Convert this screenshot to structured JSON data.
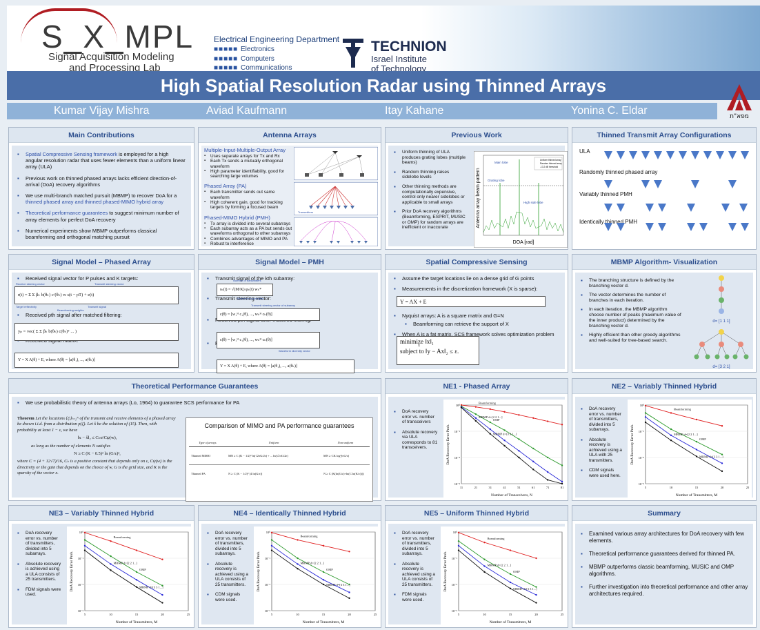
{
  "header": {
    "logo_main": "S_X_MPL",
    "logo_sub1": "Signal Acquisition Modeling",
    "logo_sub2": "and Processing Lab",
    "dept": "Electrical Engineering Department",
    "dept_lines": [
      "Electronics",
      "Computers",
      "Communications"
    ],
    "technion": "TECHNION",
    "technion_sub1": "Israel Institute",
    "technion_sub2": "of Technology",
    "rafael": "מפא\"ת"
  },
  "title": "High Spatial Resolution Radar using Thinned Arrays",
  "authors": [
    "Kumar Vijay Mishra",
    "Aviad Kaufmann",
    "Itay Kahane",
    "Yonina C. Eldar"
  ],
  "main_contributions": {
    "title": "Main Contributions",
    "items": [
      {
        "lead": "Spatial Compressive Sensing framework",
        "rest": " is employed for a high angular resolution radar that uses fewer elements than a uniform linear array (ULA)"
      },
      {
        "lead": "",
        "rest": "Previous work on thinned phased arrays lacks efficient direction-of-arrival (DoA) recovery algorithms"
      },
      {
        "lead": "",
        "rest": "We use multi-branch matched pursuit (MBMP) to recover DoA for a ",
        "tail": "thinned phased array and thinned phased-MIMO hybrid array"
      },
      {
        "lead": "Theoretical performance guarantees",
        "rest": " to suggest minimum number of array elements for perfect DoA recovery"
      },
      {
        "lead": "",
        "rest": "Numerical experiments show MBMP outperforms classical beamforming and orthogonal matching pursuit"
      }
    ]
  },
  "antenna_arrays": {
    "title": "Antenna Arrays",
    "mimo_title": "Multiple-Input-Multiple-Output Array",
    "mimo_items": [
      "Uses separate arrays for Tx and Rx",
      "Each Tx sends a mutually orthogonal waveform",
      "High parameter identifiability, good for searching large volumes"
    ],
    "pa_title": "Phased Array (PA)",
    "pa_items": [
      "Each transmitter sends out same waveform",
      "High coherent gain, good for tracking targets by forming a focused beam"
    ],
    "pmh_title": "Phased-MIMO Hybrid (PMH)",
    "pmh_items": [
      "Tx array is divided into several subarrays",
      "Each subarray acts as a PA but sends out waveforms orthogonal to other subarrays",
      "Combines advantages of MIMO and PA",
      "Robust to interference"
    ],
    "fig_label": "Transmitters"
  },
  "previous_work": {
    "title": "Previous Work",
    "items": [
      "Uniform thinning of ULA produces grating lobes (multiple beams)",
      "Random thinning raises sidelobe levels",
      "Other thinning methods are computationally expensive, control only nearer sidelobes or applicable to small arrays",
      "Prior DoA recovery algorithms (Beamforming, ESPRIT, MUSIC or OMP) for random arrays are inefficient or inaccurate"
    ],
    "fig_ylabel": "Antenna array beam pattern",
    "fig_xlabel": "DOA [rad]",
    "fig_labels": [
      "Main lobe",
      "Grating lobe",
      "High side lobe"
    ],
    "fig_legend": [
      "Uniform thinned array",
      "Random thinned array",
      "-13.2 dB threshold"
    ]
  },
  "thinned_configs": {
    "title": "Thinned Transmit Array Configurations",
    "rows": [
      "ULA",
      "Randomly thinned phased array",
      "Variably thinned PMH",
      "Identically thinned PMH"
    ]
  },
  "signal_pa": {
    "title": "Signal Model – Phased Array",
    "items": [
      "Received signal vector for P pulses and K targets:",
      "Received pth signal after matched filtering:",
      "Received signal matrix:"
    ],
    "annotations": [
      "Receive steering vector",
      "Transmit steering vector",
      "Target reflectivity",
      "Transmit signal",
      "Beamforming weights"
    ],
    "eq1": "r(t) = Σ Σ βₖ b(θₖ) cᶜ(θₖ) w s(t − pT) + e(t)",
    "eq2": "yₚ = vec( Σ Σ βₖ b(θₖ) c(θₖ)ᵀ ... )",
    "eq3": "Y = X A(θ) + E, where A(θ) = [a(θ₁), ..., a(θₖ)]"
  },
  "signal_pmh": {
    "title": "Signal Model – PMH",
    "items": [
      "Transmit signal of the kth subarray:",
      "Transmit steering vector:",
      "Received pth signal after matched filtering:",
      "Received signal matrix:"
    ],
    "annotations": [
      "Number of transmitters",
      "Beamforming weights",
      "Transmit steering vector of subarray",
      "Waveform diversity vector"
    ],
    "eq1": "sₖ(t) = √(M/K) φₖ(t) wₖ*",
    "eq2": "c(θ) = [w₁ᴴ c₁(θ), ..., wₖᴴ cₖ(θ)]",
    "eq3": "Y = X A(θ) + E, where A(θ) = [a(θ₁), ..., a(θₖ)]"
  },
  "scs": {
    "title": "Spatial Compressive Sensing",
    "items": [
      "Assume the target locations lie on a dense grid of G points",
      "Measurements in the discretization framework (X is sparse):",
      "Nyquist arrays: A is a square matrix and G=N",
      "Beamforming can retrieve the support of X",
      "When A is a fat matrix, SCS framework solves optimization problem"
    ],
    "eq1": "Y = AX + E",
    "opt1": "minimize  ‖x‖₁",
    "opt1_sub": "x",
    "opt2": "subject to  ‖y − Ax‖₂ ≤ ε."
  },
  "mbmp": {
    "title": "MBMP Algorithm- Visualization",
    "items": [
      "The branching structure is defined by the branching vector d.",
      "The vector determines the number of branches in each iteration.",
      "In each iteration, the MBMP algorithm choose number of peaks (maximum value of the inner product) determined by the branching vector d.",
      "Highly efficient than other greedy algorithms and well-suited for tree-based search."
    ],
    "d1": "d= [1 1 1]",
    "d2": "d= [3 2 1]"
  },
  "theory": {
    "title": "Theoretical Performance Guarantees",
    "intro": "We use probabilistic theory of antenna arrays (Lo, 1964) to guarantee SCS performance for PA",
    "theorem_head": "Theorem",
    "theorem_text": "Let the locations {ζₗ}ₗ₌₁ᴺ of the transmit and receive elements of a phased array be drawn i.i.d. from a distribution p(ζ). Let x̂ be the solution of (15). Then, with probability at least 1 − ε, we have",
    "ineq1": "‖x − x̂‖₂ ≤ Cₖσ/Cψ(w),",
    "ineq_text": "as long as the number of elements N satisfies",
    "ineq2": "N ≥ C (K − 0.5)² ln (G/ε)²,",
    "closing": "where C = (4 + 12√7)/16, Cₖ is a positive constant that depends only on ε, Cψ(w) is the directivity or the gain that depends on the choice of w, G is the grid size, and K is the sparsity of the vector x.",
    "table_title": "Comparison of MIMO and PA performance guarantees",
    "table_headers": [
      "Type of arrays",
      "Uniform",
      "Non-uniform"
    ],
    "table_rows": [
      [
        "Thinned MIMO",
        "MN ≥ C (K − 1/2)² ln(√2πG/2ε) + ... ln(√2πG/2ε)",
        "MN ≥ CK log³(πG/ε)"
      ],
      [
        "Thinned PA",
        "N ≥ C (K − 1/2)² [4 ln(G/ε)]",
        "N ≥ C (K(ln(G/ε)+ln(C ln(K/ε))))"
      ]
    ]
  },
  "ne1": {
    "title": "NE1 - Phased Array",
    "items": [
      "DoA recovery error vs. number of transceivers",
      "Absolute recovery via ULA corresponds to 81 transceivers."
    ]
  },
  "ne2": {
    "title": "NE2 – Variably Thinned Hybrid",
    "items": [
      "DoA recovery error vs. number of transmitters, divided into 5 subarrays.",
      "Absolute recovery is achieved using a ULA with 25 transmitters.",
      "CDM signals were used here."
    ]
  },
  "ne3": {
    "title": "NE3 – Variably Thinned Hybrid",
    "items": [
      "DoA recovery error vs. number of transmitters, divided into 5 subarrays.",
      "Absolute recovery is achieved using a ULA consists of 25 transmitters.",
      "FDM signals were used."
    ]
  },
  "ne4": {
    "title": "NE4 – Identically Thinned Hybrid",
    "items": [
      "DoA recovery error vs. number of transmitters, divided into 5 subarrays.",
      "Absolute recovery is achieved using a ULA consists of 25 transmitters.",
      "CDM signals were used."
    ]
  },
  "ne5": {
    "title": "NE5 – Uniform Thinned Hybrid",
    "items": [
      "DoA recovery error vs. number of transmitters, divided into 5 subarrays.",
      "Absolute recovery is achieved using a ULA consists of 25 transmitters.",
      "FDM signals were used."
    ]
  },
  "summary": {
    "title": "Summary",
    "items": [
      "Examined various array architectures for DoA recovery with few elements.",
      "Theoretical performance guarantees derived for thinned PA.",
      "MBMP outperforms classic beamforming, MUSIC and OMP algorithms.",
      "Further investigation into theoretical performance and other array architectures required."
    ]
  },
  "chart_data": [
    {
      "id": "ne1",
      "type": "line",
      "xlabel": "Number of Transceivers, N",
      "ylabel": "DoA Recovery Error Prob.",
      "x": [
        11,
        21,
        31,
        41,
        51,
        61,
        71,
        81
      ],
      "xticks": [
        "11",
        "21",
        "31",
        "41",
        "51",
        "61",
        "71",
        "81"
      ],
      "ylim": [
        0.001,
        1
      ],
      "yscale": "log",
      "series": [
        {
          "name": "Beamforming",
          "color": "#e02020",
          "values": [
            1.0,
            0.85,
            0.7,
            0.55,
            0.42,
            0.32,
            0.24,
            0.18
          ]
        },
        {
          "name": "OMP",
          "color": "#2d9a2d",
          "values": [
            0.9,
            0.45,
            0.22,
            0.11,
            0.05,
            0.022,
            0.01,
            0.005
          ]
        },
        {
          "name": "MBMP d=[2 2 1...]",
          "color": "#2a2ad8",
          "values": [
            0.85,
            0.32,
            0.12,
            0.045,
            0.018,
            0.007,
            0.0028,
            0.0012
          ]
        },
        {
          "name": "MBMP d=[3 3 1...]",
          "color": "#111111",
          "values": [
            0.8,
            0.25,
            0.08,
            0.028,
            0.01,
            0.0035,
            0.0014,
            0.001
          ]
        }
      ]
    },
    {
      "id": "ne2",
      "type": "line",
      "xlabel": "Number of Transmitters, M",
      "ylabel": "DoA Recovery Error Prob.",
      "x": [
        5,
        10,
        15,
        20
      ],
      "xticks": [
        "5",
        "10",
        "15",
        "20",
        "25"
      ],
      "ylim": [
        0.001,
        1
      ],
      "yscale": "log",
      "series": [
        {
          "name": "Beamforming",
          "color": "#e02020",
          "values": [
            0.95,
            0.5,
            0.28,
            0.16
          ]
        },
        {
          "name": "OMP",
          "color": "#2d9a2d",
          "values": [
            0.5,
            0.12,
            0.04,
            0.013
          ]
        },
        {
          "name": "MBMP d=[2 2 1...]",
          "color": "#2a2ad8",
          "values": [
            0.35,
            0.07,
            0.02,
            0.006
          ]
        },
        {
          "name": "MBMP d=[3 3 1...]",
          "color": "#111111",
          "values": [
            0.22,
            0.045,
            0.011,
            0.003
          ]
        }
      ]
    },
    {
      "id": "ne3",
      "type": "line",
      "xlabel": "Number of Transmitters, M",
      "ylabel": "DoA Recovery Error Prob.",
      "x": [
        5,
        10,
        15,
        20
      ],
      "xticks": [
        "5",
        "10",
        "15",
        "20",
        "25"
      ],
      "ylim": [
        0.001,
        1
      ],
      "yscale": "log",
      "series": [
        {
          "name": "Beamforming",
          "color": "#e02020",
          "values": [
            0.95,
            0.45,
            0.2,
            0.09
          ]
        },
        {
          "name": "OMP",
          "color": "#2d9a2d",
          "values": [
            0.5,
            0.12,
            0.03,
            0.009
          ]
        },
        {
          "name": "MBMP d=[2 2 1...]",
          "color": "#2a2ad8",
          "values": [
            0.3,
            0.06,
            0.015,
            0.004
          ]
        },
        {
          "name": "MBMP d=[3 3 1...]",
          "color": "#111111",
          "values": [
            0.2,
            0.035,
            0.008,
            0.002
          ]
        }
      ]
    },
    {
      "id": "ne4",
      "type": "line",
      "xlabel": "Number of Transmitters, M",
      "ylabel": "DoA Recovery Error Prob.",
      "x": [
        5,
        10,
        15,
        20
      ],
      "xticks": [
        "5",
        "10",
        "15",
        "20",
        "25"
      ],
      "ylim": [
        0.001,
        1
      ],
      "yscale": "log",
      "series": [
        {
          "name": "Beamforming",
          "color": "#e02020",
          "values": [
            0.95,
            0.5,
            0.3,
            0.18
          ]
        },
        {
          "name": "OMP",
          "color": "#2d9a2d",
          "values": [
            0.5,
            0.1,
            0.03,
            0.01
          ]
        },
        {
          "name": "MBMP d=[2 2 1...]",
          "color": "#2a2ad8",
          "values": [
            0.3,
            0.06,
            0.015,
            0.005
          ]
        },
        {
          "name": "MBMP d=[3 3 1...]",
          "color": "#111111",
          "values": [
            0.2,
            0.04,
            0.01,
            0.003
          ]
        }
      ]
    },
    {
      "id": "ne5",
      "type": "line",
      "xlabel": "Number of Transmitters, M",
      "ylabel": "DoA Recovery Error Prob.",
      "x": [
        5,
        10,
        15,
        20
      ],
      "xticks": [
        "5",
        "10",
        "15",
        "20",
        "25"
      ],
      "ylim": [
        0.001,
        1
      ],
      "yscale": "log",
      "series": [
        {
          "name": "Beamforming",
          "color": "#e02020",
          "values": [
            0.95,
            0.4,
            0.2,
            0.1
          ]
        },
        {
          "name": "OMP",
          "color": "#2d9a2d",
          "values": [
            0.45,
            0.09,
            0.025,
            0.008
          ]
        },
        {
          "name": "MBMP d=[2 2 1...]",
          "color": "#2a2ad8",
          "values": [
            0.3,
            0.05,
            0.012,
            0.004
          ]
        },
        {
          "name": "MBMP d=[3 3 1...]",
          "color": "#111111",
          "values": [
            0.2,
            0.03,
            0.007,
            0.002
          ]
        }
      ]
    }
  ]
}
